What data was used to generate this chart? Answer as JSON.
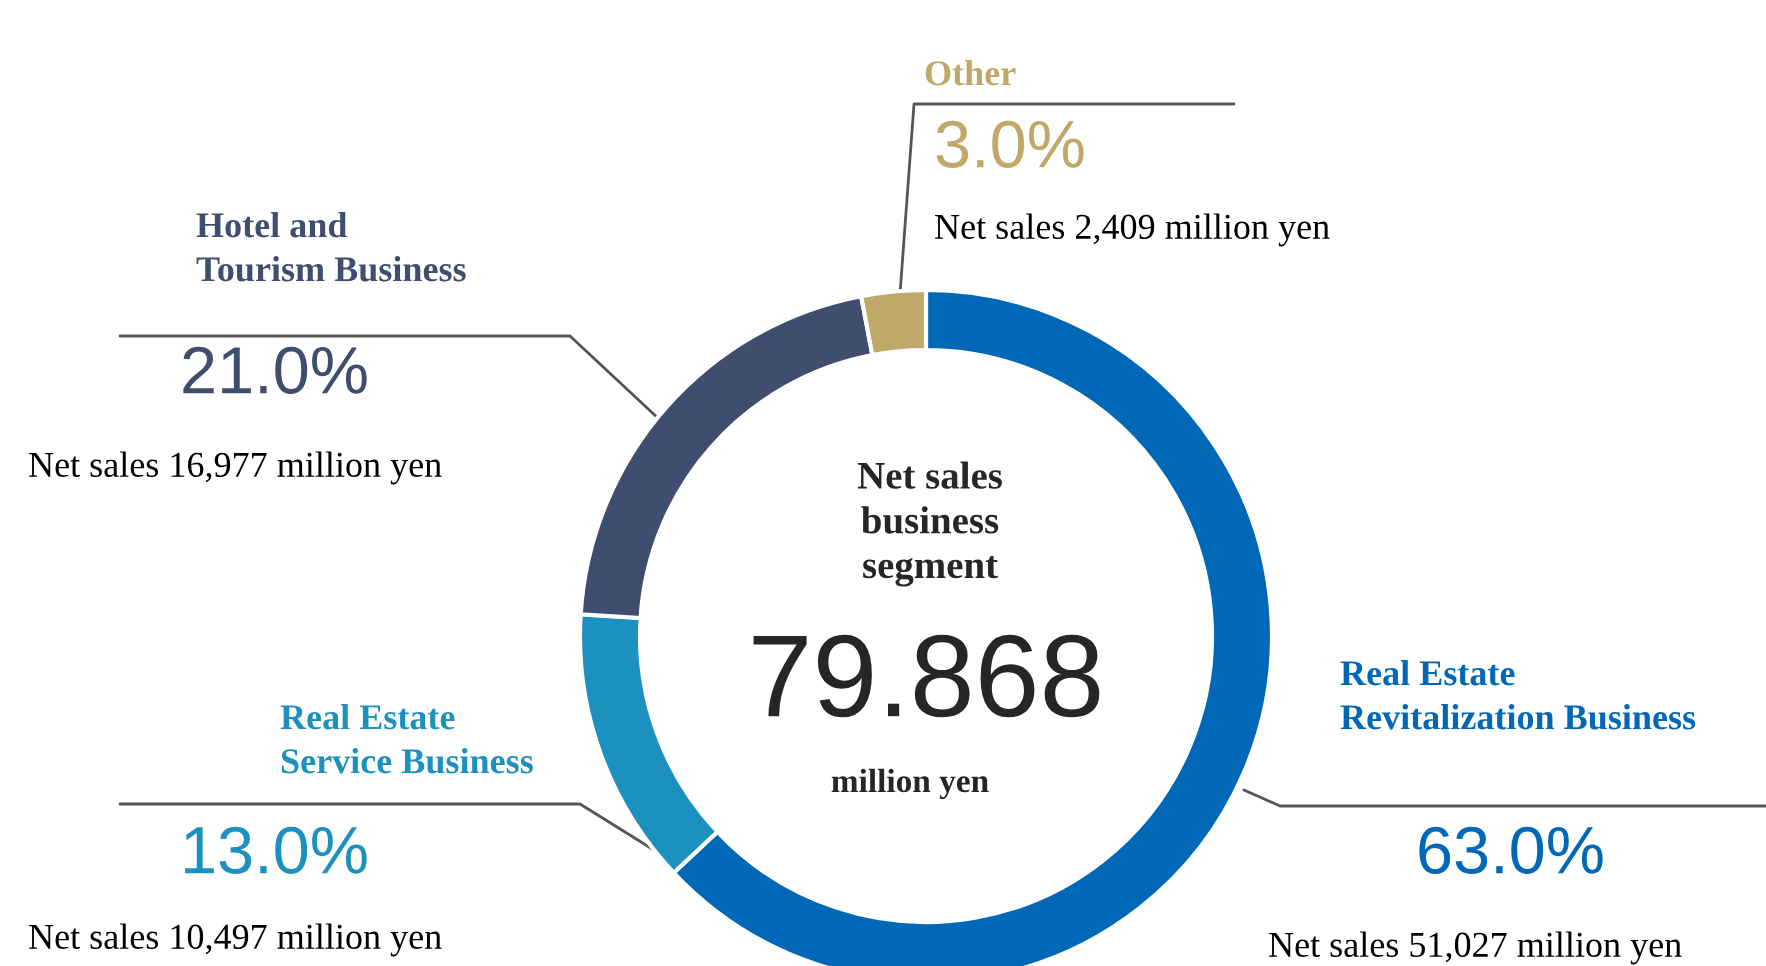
{
  "chart_data": {
    "type": "donut",
    "categories": [
      "Real Estate\nRevitalization Business",
      "Real Estate\nService Business",
      "Hotel and\nTourism Business",
      "Other"
    ],
    "values": [
      63.0,
      13.0,
      21.0,
      3.0
    ],
    "colors": [
      "#0068b7",
      "#1c90bf",
      "#3f4e6e",
      "#bfa868"
    ],
    "value_labels": [
      "63.0%",
      "13.0%",
      "21.0%",
      "3.0%"
    ],
    "annotations": [
      "Net sales 51,027 million yen",
      "Net sales 10,497 million yen",
      "Net sales 16,977 million yen",
      "Net sales 2,409 million yen",
      "Net sales\nbusiness\nsegment",
      "79.868",
      "million yen"
    ],
    "legend": false
  }
}
